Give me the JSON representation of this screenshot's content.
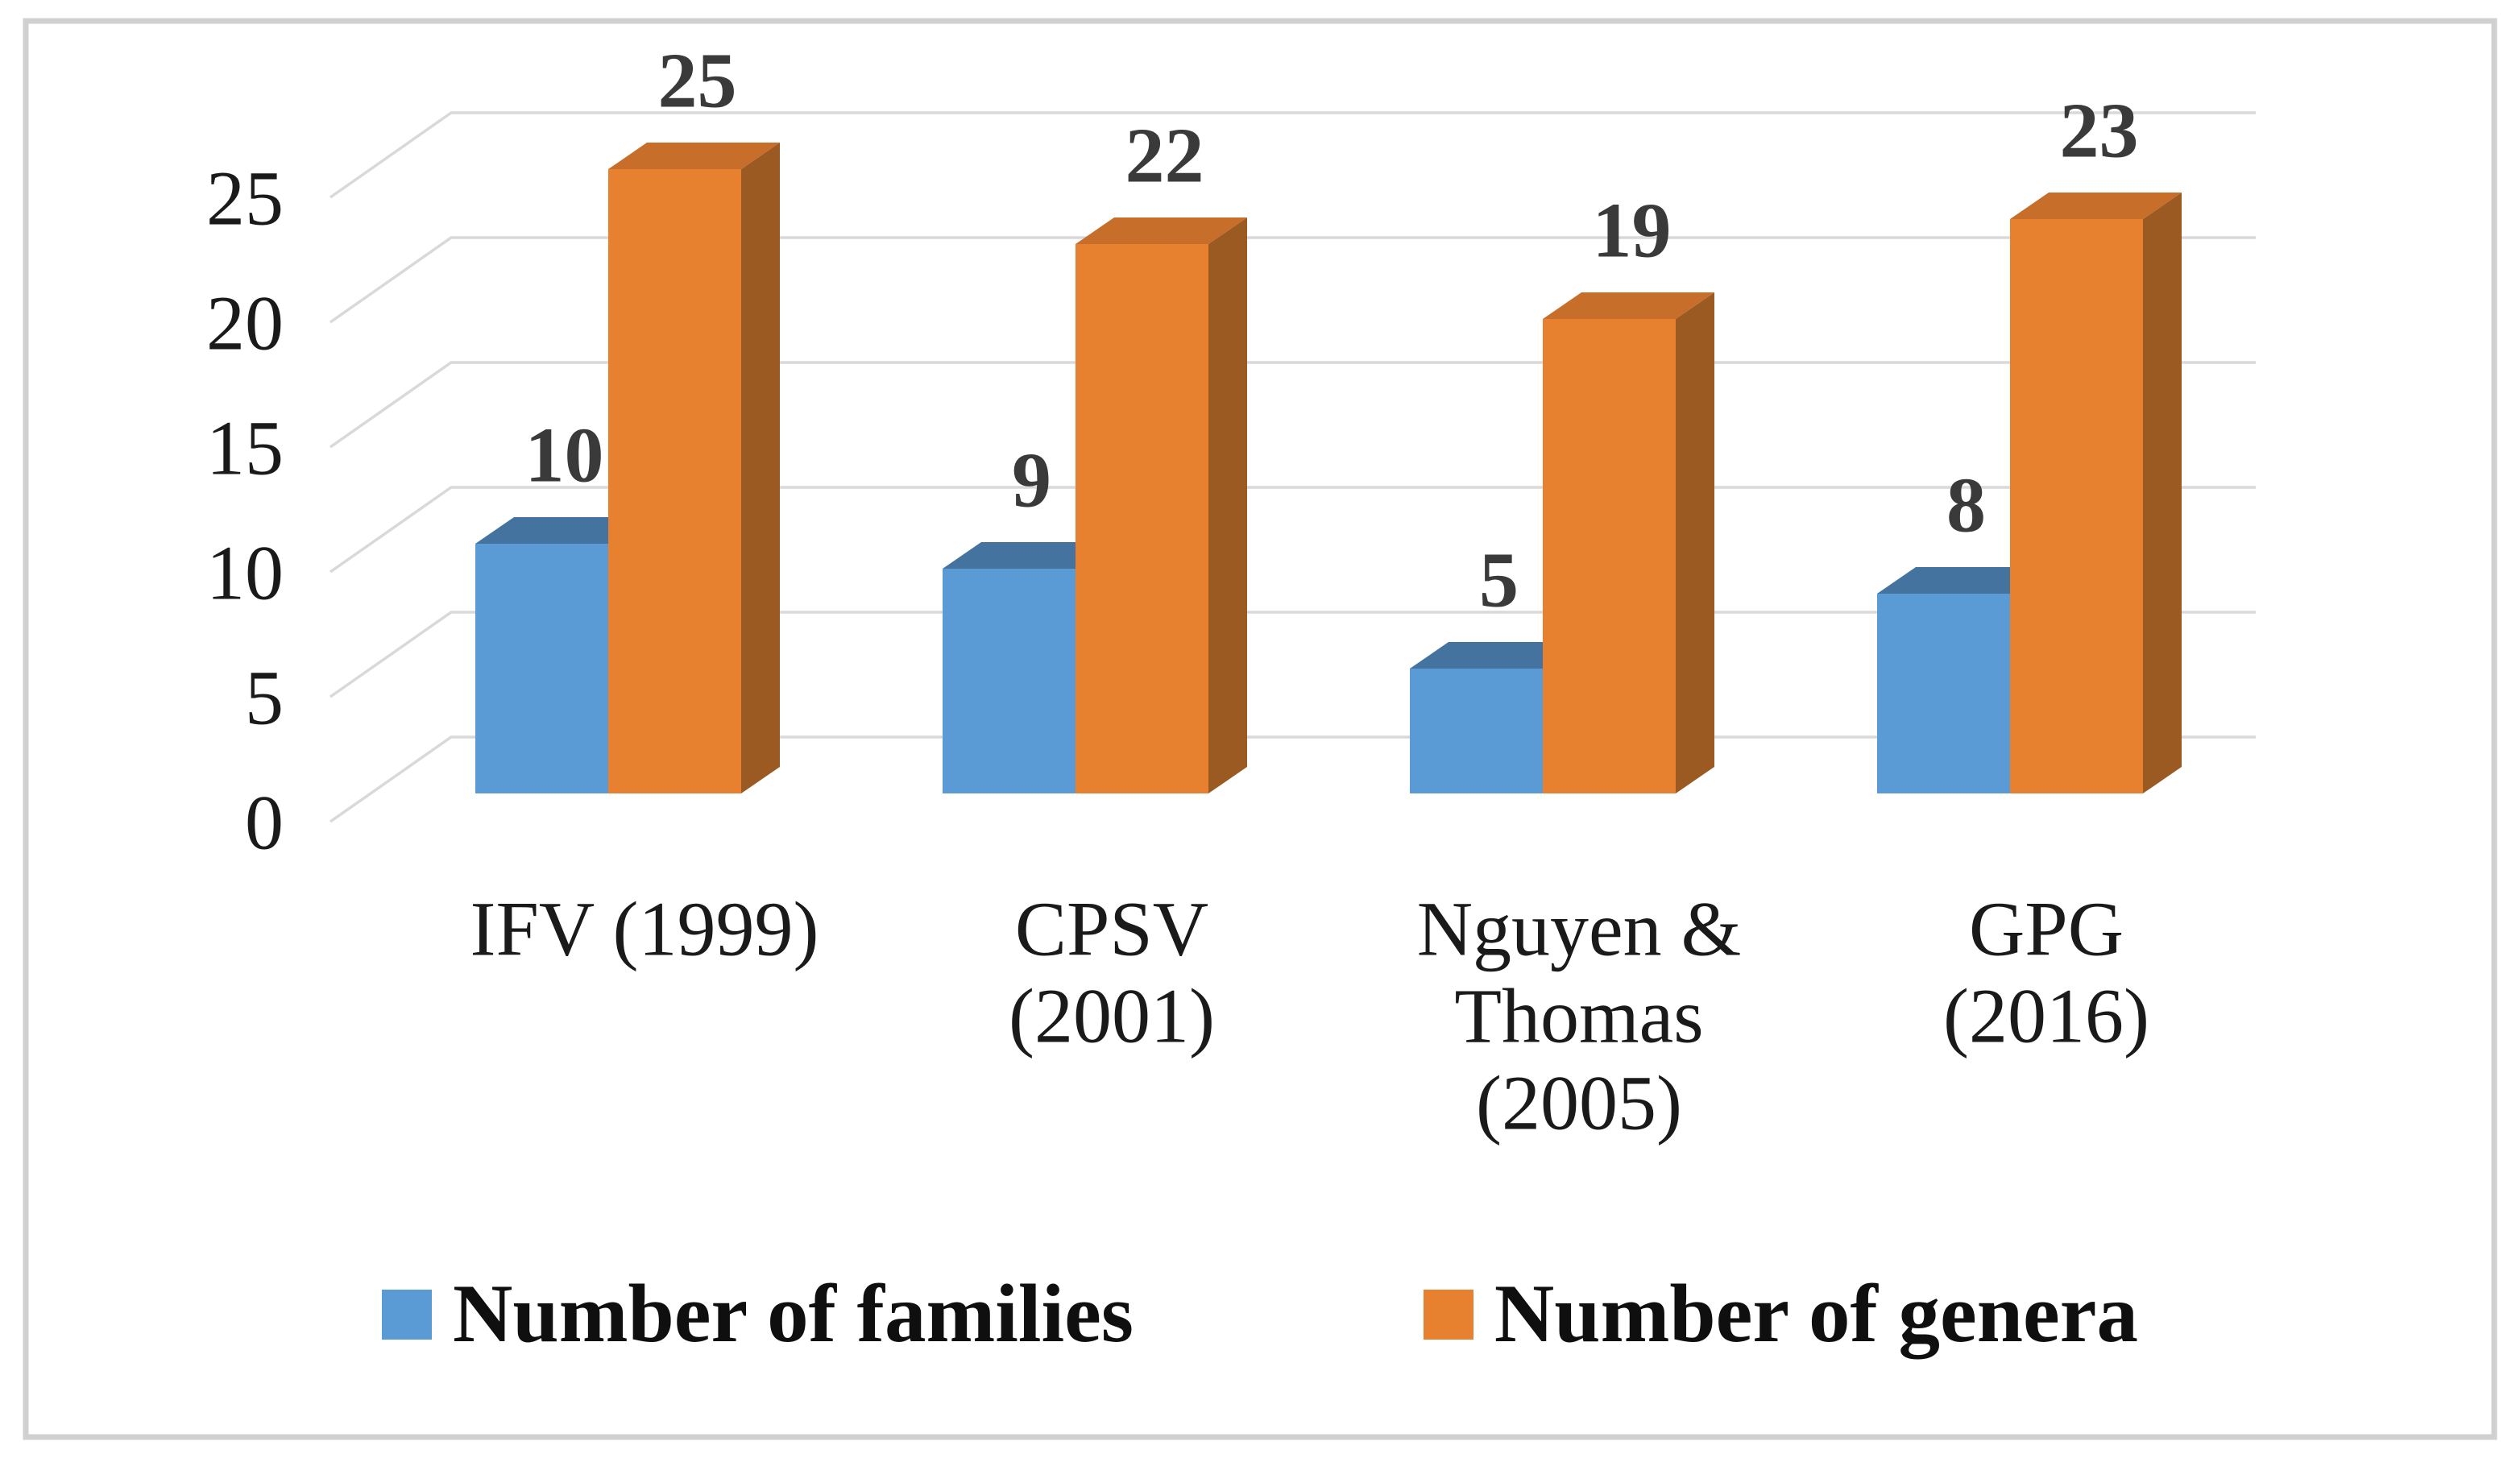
{
  "chart_data": {
    "type": "bar",
    "projection": "3d-clustered-column",
    "title": "",
    "xlabel": "",
    "ylabel": "",
    "categories": [
      "IFV (1999)",
      "CPSV (2001)",
      "Nguyen & Thomas (2005)",
      "GPG (2016)"
    ],
    "category_lines": [
      [
        "IFV (1999)"
      ],
      [
        "CPSV",
        "(2001)"
      ],
      [
        "Nguyen &",
        "Thomas",
        "(2005)"
      ],
      [
        "GPG",
        "(2016)"
      ]
    ],
    "series": [
      {
        "name": "Number of families",
        "values": [
          10,
          9,
          5,
          8
        ],
        "color": "#5B9BD5",
        "top_color": "#44739F",
        "side_color": "#3D648C"
      },
      {
        "name": "Number of genera",
        "values": [
          25,
          22,
          19,
          23
        ],
        "color": "#E8812F",
        "top_color": "#C76E2B",
        "side_color": "#9B5A22"
      }
    ],
    "yticks": [
      0,
      5,
      10,
      15,
      20,
      25
    ],
    "ylim": [
      0,
      25
    ],
    "grid": true,
    "data_labels": true,
    "legend_position": "bottom"
  },
  "style": {
    "background": "#ffffff",
    "border_color": "#d0d0d0",
    "gridline_color": "#d9d9d9",
    "axis_text_color": "#1a1a1a",
    "category_text_color": "#1a1a1a",
    "data_label_color": "#3a3a3a"
  }
}
